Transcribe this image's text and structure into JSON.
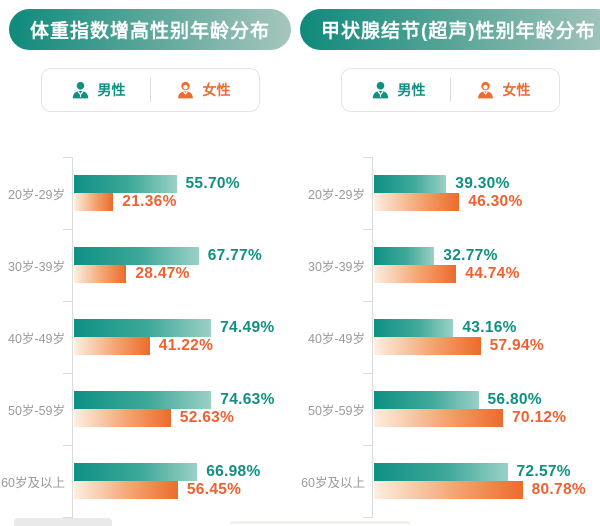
{
  "charts": [
    {
      "title": "体重指数增高性别年龄分布",
      "legend": {
        "male_label": "男性",
        "female_label": "女性"
      },
      "chart_data": {
        "type": "bar",
        "orientation": "horizontal",
        "title": "体重指数增高性别年龄分布",
        "categories": [
          "20岁-29岁",
          "30岁-39岁",
          "40岁-49岁",
          "50岁-59岁",
          "60岁及以上"
        ],
        "series": [
          {
            "name": "男性",
            "color": "#0F9082",
            "values": [
              55.7,
              67.77,
              74.49,
              74.63,
              66.98
            ]
          },
          {
            "name": "女性",
            "color": "#ED6C2E",
            "values": [
              21.36,
              28.47,
              41.22,
              52.63,
              56.45
            ]
          }
        ],
        "value_suffix": "%",
        "value_decimals": 2,
        "xlim": [
          0,
          100
        ],
        "grid": false,
        "legend_position": "top"
      }
    },
    {
      "title": "甲状腺结节(超声)性别年龄分布",
      "legend": {
        "male_label": "男性",
        "female_label": "女性"
      },
      "chart_data": {
        "type": "bar",
        "orientation": "horizontal",
        "title": "甲状腺结节(超声)性别年龄分布",
        "categories": [
          "20岁-29岁",
          "30岁-39岁",
          "40岁-49岁",
          "50岁-59岁",
          "60岁及以上"
        ],
        "series": [
          {
            "name": "男性",
            "color": "#0F9082",
            "values": [
              39.3,
              32.77,
              43.16,
              56.8,
              72.57
            ]
          },
          {
            "name": "女性",
            "color": "#ED6C2E",
            "values": [
              46.3,
              44.74,
              57.94,
              70.12,
              80.78
            ]
          }
        ],
        "value_suffix": "%",
        "value_decimals": 2,
        "xlim": [
          0,
          100
        ],
        "grid": false,
        "legend_position": "top"
      }
    }
  ],
  "colors": {
    "male_text": "#0F9082",
    "female_text": "#EE6132",
    "male_bar_gradient": [
      "#0E9084",
      "#9BD0C6"
    ],
    "female_bar_gradient": [
      "#FCEFE1",
      "#EC6B2D"
    ],
    "title_pill_gradient": [
      "#0E8A7C",
      "#A6C6BD"
    ],
    "axis": "#DBDBDB",
    "age_label": "#9A9A9A"
  }
}
